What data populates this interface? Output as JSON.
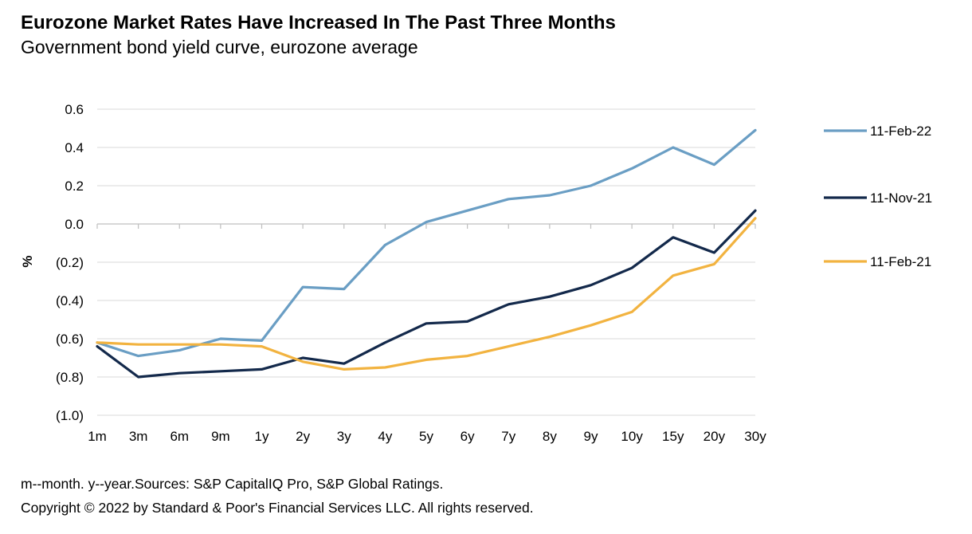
{
  "header": {
    "title": "Eurozone Market Rates Have Increased In The Past Three Months",
    "subtitle": "Government bond yield curve, eurozone average"
  },
  "footer": {
    "note": "m--month. y--year.Sources: S&P CapitalIQ Pro, S&P Global Ratings.",
    "copyright": "Copyright © 2022 by Standard & Poor's Financial Services LLC. All rights reserved."
  },
  "chart_data": {
    "type": "line",
    "title": "Eurozone Market Rates Have Increased In The Past Three Months",
    "subtitle": "Government bond yield curve, eurozone average",
    "xlabel": "",
    "ylabel": "%",
    "categories": [
      "1m",
      "3m",
      "6m",
      "9m",
      "1y",
      "2y",
      "3y",
      "4y",
      "5y",
      "6y",
      "7y",
      "8y",
      "9y",
      "10y",
      "15y",
      "20y",
      "30y"
    ],
    "ylim": [
      -1.0,
      0.6
    ],
    "yticks": [
      0.6,
      0.4,
      0.2,
      0.0,
      -0.2,
      -0.4,
      -0.6,
      -0.8,
      -1.0
    ],
    "ytick_labels": [
      "0.6",
      "0.4",
      "0.2",
      "0.0",
      "(0.2)",
      "(0.4)",
      "(0.6)",
      "(0.8)",
      "(1.0)"
    ],
    "grid": "horizontal",
    "legend_position": "right",
    "series": [
      {
        "name": "11-Feb-22",
        "color": "#6a9ec4",
        "values": [
          -0.62,
          -0.69,
          -0.66,
          -0.6,
          -0.61,
          -0.33,
          -0.34,
          -0.11,
          0.01,
          0.07,
          0.13,
          0.15,
          0.2,
          0.29,
          0.4,
          0.31,
          0.49
        ]
      },
      {
        "name": "11-Nov-21",
        "color": "#13294b",
        "values": [
          -0.64,
          -0.8,
          -0.78,
          -0.77,
          -0.76,
          -0.7,
          -0.73,
          -0.62,
          -0.52,
          -0.51,
          -0.42,
          -0.38,
          -0.32,
          -0.23,
          -0.07,
          -0.15,
          0.07
        ]
      },
      {
        "name": "11-Feb-21",
        "color": "#f2b340",
        "values": [
          -0.62,
          -0.63,
          -0.63,
          -0.63,
          -0.64,
          -0.72,
          -0.76,
          -0.75,
          -0.71,
          -0.69,
          -0.64,
          -0.59,
          -0.53,
          -0.46,
          -0.27,
          -0.21,
          0.03
        ]
      }
    ]
  }
}
